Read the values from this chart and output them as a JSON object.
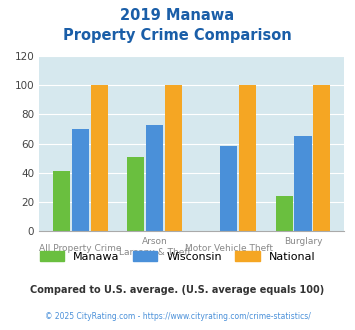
{
  "title_line1": "2019 Manawa",
  "title_line2": "Property Crime Comparison",
  "category_labels_top": [
    "All Property Crime",
    "Arson",
    "Motor Vehicle Theft",
    "Burglary"
  ],
  "category_labels_bottom": [
    "",
    "Larceny & Theft",
    "",
    ""
  ],
  "manawa_values": [
    41,
    51,
    0,
    24
  ],
  "wisconsin_values": [
    70,
    73,
    58,
    65
  ],
  "national_values": [
    100,
    100,
    100,
    100
  ],
  "manawa_color": "#6abf3f",
  "wisconsin_color": "#4a90d9",
  "national_color": "#f5a623",
  "ylim": [
    0,
    120
  ],
  "yticks": [
    0,
    20,
    40,
    60,
    80,
    100,
    120
  ],
  "background_color": "#d6e8ee",
  "title_color": "#1a5ea8",
  "footnote": "Compared to U.S. average. (U.S. average equals 100)",
  "credit": "© 2025 CityRating.com - https://www.cityrating.com/crime-statistics/",
  "footnote_color": "#333333",
  "credit_color": "#4a90d9",
  "legend_label_color": "#333333"
}
